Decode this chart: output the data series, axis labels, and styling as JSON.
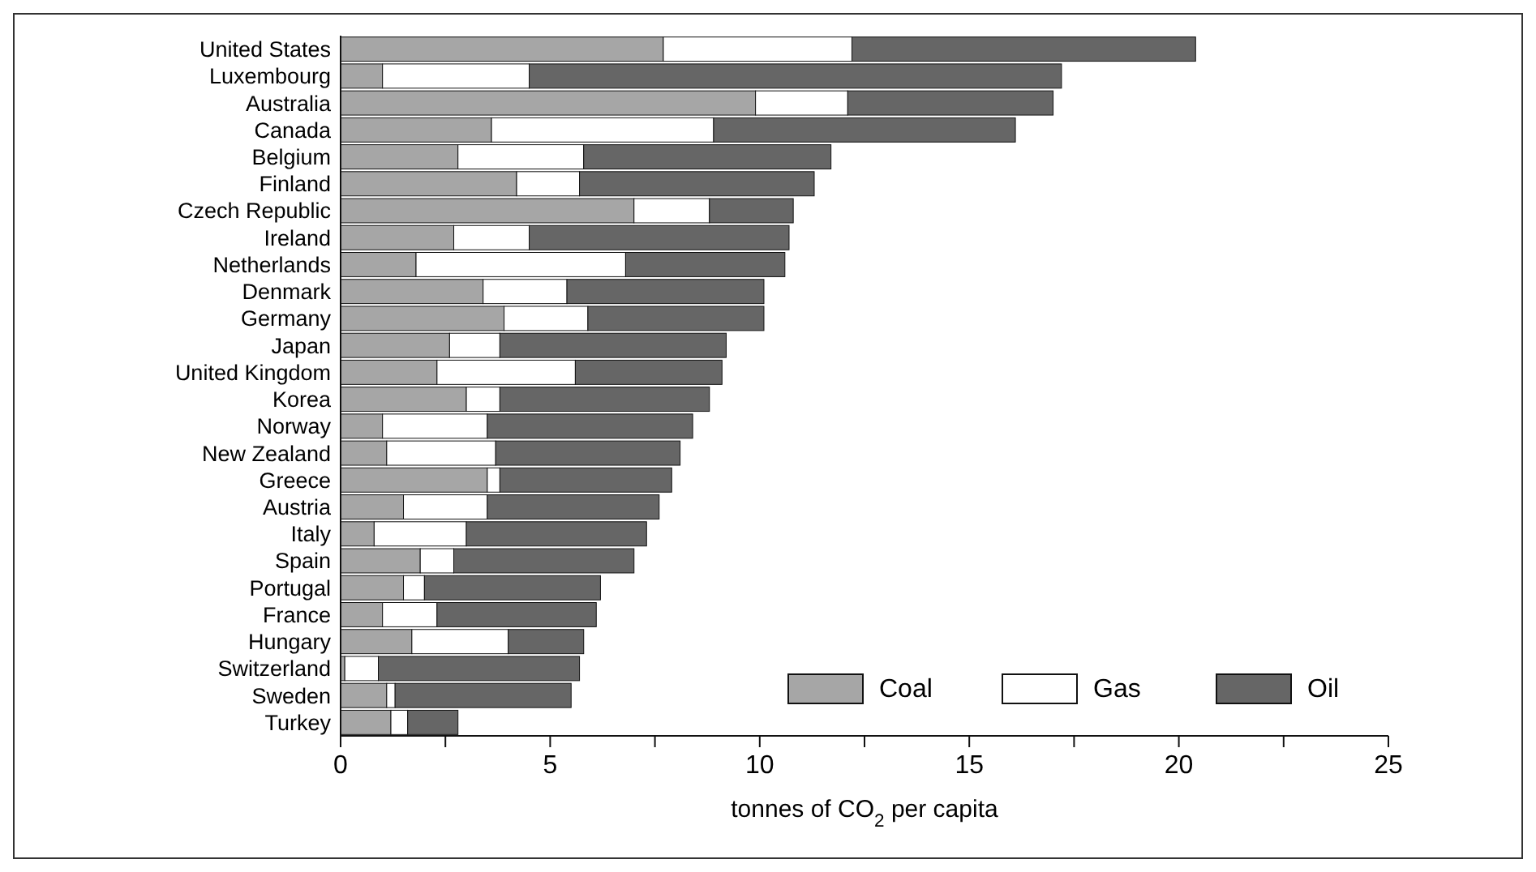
{
  "chart_data": {
    "type": "bar",
    "orientation": "horizontal",
    "stacked": true,
    "xlabel": "tonnes of CO$_{2}$ per capita",
    "categories": [
      "United States",
      "Luxembourg",
      "Australia",
      "Canada",
      "Belgium",
      "Finland",
      "Czech Republic",
      "Ireland",
      "Netherlands",
      "Denmark",
      "Germany",
      "Japan",
      "United Kingdom",
      "Korea",
      "Norway",
      "New Zealand",
      "Greece",
      "Austria",
      "Italy",
      "Spain",
      "Portugal",
      "France",
      "Hungary",
      "Switzerland",
      "Sweden",
      "Turkey"
    ],
    "series": [
      {
        "name": "Coal",
        "color": "#a6a6a6",
        "values": [
          7.7,
          1.0,
          9.9,
          3.6,
          2.8,
          4.2,
          7.0,
          2.7,
          1.8,
          3.4,
          3.9,
          2.6,
          2.3,
          3.0,
          1.0,
          1.1,
          3.5,
          1.5,
          0.8,
          1.9,
          1.5,
          1.0,
          1.7,
          0.1,
          1.1,
          1.2
        ]
      },
      {
        "name": "Gas",
        "color": "#ffffff",
        "values": [
          4.5,
          3.5,
          2.2,
          5.3,
          3.0,
          1.5,
          1.8,
          1.8,
          5.0,
          2.0,
          2.0,
          1.2,
          3.3,
          0.8,
          2.5,
          2.6,
          0.3,
          2.0,
          2.2,
          0.8,
          0.5,
          1.3,
          2.3,
          0.8,
          0.2,
          0.4
        ]
      },
      {
        "name": "Oil",
        "color": "#666666",
        "values": [
          8.2,
          12.7,
          4.9,
          7.2,
          5.9,
          5.6,
          2.0,
          6.2,
          3.8,
          4.7,
          4.2,
          5.4,
          3.5,
          5.0,
          4.9,
          4.4,
          4.1,
          4.1,
          4.3,
          4.3,
          4.2,
          3.8,
          1.8,
          4.8,
          4.2,
          1.2
        ]
      }
    ],
    "xlim": [
      0,
      25
    ],
    "xticks": [
      0,
      {
        "value": 2.5,
        "label": null
      },
      5,
      {
        "value": 7.5,
        "label": null
      },
      10,
      {
        "value": 12.5,
        "label": null
      },
      15,
      {
        "value": 17.5,
        "label": null
      },
      20,
      {
        "value": 22.5,
        "label": null
      },
      25
    ],
    "legend": "bottom right",
    "grid": false
  }
}
